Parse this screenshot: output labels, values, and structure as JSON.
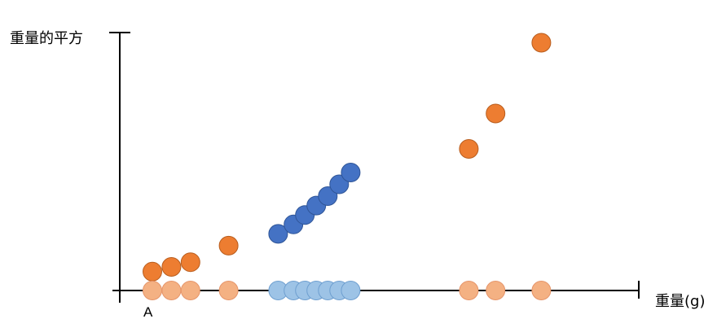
{
  "labels": {
    "y_axis": "重量的平方",
    "x_axis": "重量(g)",
    "origin_point": "A"
  },
  "colors": {
    "axis": "#000000",
    "orange_fill": "#ed7d31",
    "orange_stroke": "#b85d1e",
    "light_orange_fill": "#f4b183",
    "light_orange_stroke": "#e6956a",
    "blue_fill": "#4472c4",
    "blue_stroke": "#2f5597",
    "light_blue_fill": "#9dc3e6",
    "light_blue_stroke": "#6f9fd0"
  },
  "series": [
    {
      "key": "squared_outer",
      "points": [
        {
          "x": 1.0,
          "y": 0.8
        },
        {
          "x": 1.5,
          "y": 1.0
        },
        {
          "x": 2.0,
          "y": 1.2
        },
        {
          "x": 3.0,
          "y": 1.9
        },
        {
          "x": 9.3,
          "y": 6.0
        },
        {
          "x": 10.0,
          "y": 7.5
        },
        {
          "x": 11.2,
          "y": 10.5
        }
      ]
    },
    {
      "key": "squared_middle",
      "points": [
        {
          "x": 4.3,
          "y": 2.4
        },
        {
          "x": 4.7,
          "y": 2.8
        },
        {
          "x": 5.0,
          "y": 3.2
        },
        {
          "x": 5.3,
          "y": 3.6
        },
        {
          "x": 5.6,
          "y": 4.0
        },
        {
          "x": 5.9,
          "y": 4.5
        },
        {
          "x": 6.2,
          "y": 5.0
        }
      ]
    },
    {
      "key": "weight_outer",
      "points": [
        {
          "x": 1.0,
          "y": 0
        },
        {
          "x": 1.5,
          "y": 0
        },
        {
          "x": 2.0,
          "y": 0
        },
        {
          "x": 3.0,
          "y": 0
        },
        {
          "x": 9.3,
          "y": 0
        },
        {
          "x": 10.0,
          "y": 0
        },
        {
          "x": 11.2,
          "y": 0
        }
      ]
    },
    {
      "key": "weight_middle",
      "points": [
        {
          "x": 4.3,
          "y": 0
        },
        {
          "x": 4.7,
          "y": 0
        },
        {
          "x": 5.0,
          "y": 0
        },
        {
          "x": 5.3,
          "y": 0
        },
        {
          "x": 5.6,
          "y": 0
        },
        {
          "x": 5.9,
          "y": 0
        },
        {
          "x": 6.2,
          "y": 0
        }
      ]
    }
  ]
}
